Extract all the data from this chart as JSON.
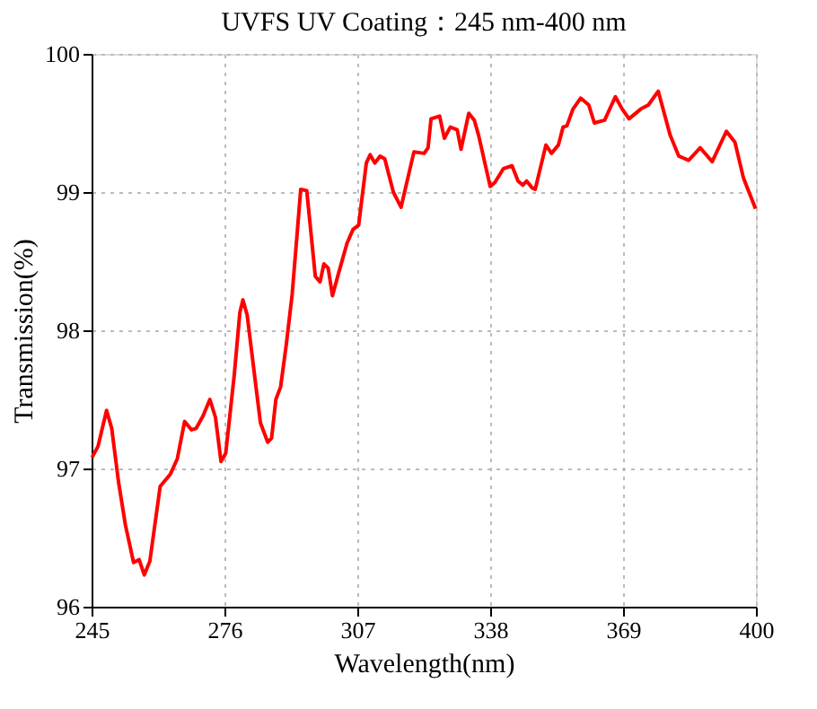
{
  "chart_data": {
    "type": "line",
    "title": "UVFS UV Coating：245 nm-400 nm",
    "xlabel": "Wavelength(nm)",
    "ylabel": "Transmission(%)",
    "xlim": [
      245,
      400
    ],
    "xticks": [
      245,
      276,
      307,
      338,
      369,
      400
    ],
    "ylim": [
      96,
      100
    ],
    "yticks": [
      96,
      97,
      98,
      99,
      100
    ],
    "grid": true,
    "marker": "none",
    "line_style": "solid",
    "x": [
      245.1,
      246.5,
      248.5,
      249.7,
      251.3,
      252.9,
      254.8,
      256.1,
      257.3,
      258.6,
      261.0,
      263.4,
      265.0,
      266.7,
      268.3,
      269.4,
      271.0,
      272.6,
      273.9,
      275.2,
      276.3,
      278.3,
      279.6,
      280.3,
      281.3,
      283.0,
      284.4,
      286.1,
      287.0,
      288.0,
      289.1,
      290.4,
      291.8,
      293.8,
      295.2,
      297.2,
      298.3,
      299.2,
      300.2,
      301.2,
      302.6,
      304.6,
      306.0,
      307.3,
      309.1,
      310.0,
      311.1,
      312.3,
      313.4,
      315.4,
      317.2,
      320.2,
      322.6,
      323.5,
      324.2,
      326.2,
      327.3,
      328.7,
      330.3,
      331.2,
      333.0,
      334.3,
      335.3,
      338.0,
      339.1,
      341.1,
      343.1,
      344.5,
      345.6,
      346.5,
      347.8,
      348.5,
      351.0,
      352.3,
      353.9,
      355.0,
      355.9,
      357.3,
      359.1,
      361.0,
      362.3,
      364.7,
      367.2,
      368.8,
      370.4,
      373.1,
      374.9,
      377.2,
      380.0,
      382.0,
      384.3,
      387.0,
      389.8,
      393.1,
      395.1,
      397.1,
      399.9
    ],
    "series": [
      {
        "color": "#ff0000",
        "values": [
          97.08,
          97.16,
          97.42,
          97.29,
          96.9,
          96.59,
          96.32,
          96.34,
          96.23,
          96.33,
          96.87,
          96.96,
          97.07,
          97.34,
          97.28,
          97.29,
          97.38,
          97.5,
          97.37,
          97.05,
          97.11,
          97.68,
          98.13,
          98.22,
          98.11,
          97.68,
          97.33,
          97.19,
          97.22,
          97.5,
          97.59,
          97.89,
          98.26,
          99.02,
          99.01,
          98.39,
          98.35,
          98.48,
          98.45,
          98.25,
          98.41,
          98.63,
          98.73,
          98.76,
          99.21,
          99.27,
          99.21,
          99.26,
          99.24,
          99.0,
          98.89,
          99.29,
          99.28,
          99.32,
          99.53,
          99.55,
          99.39,
          99.47,
          99.45,
          99.31,
          99.57,
          99.52,
          99.41,
          99.04,
          99.07,
          99.17,
          99.19,
          99.08,
          99.05,
          99.08,
          99.03,
          99.02,
          99.34,
          99.28,
          99.34,
          99.47,
          99.48,
          99.6,
          99.68,
          99.63,
          99.5,
          99.52,
          99.69,
          99.6,
          99.53,
          99.6,
          99.63,
          99.73,
          99.41,
          99.26,
          99.23,
          99.32,
          99.22,
          99.44,
          99.36,
          99.1,
          98.88
        ]
      }
    ]
  }
}
